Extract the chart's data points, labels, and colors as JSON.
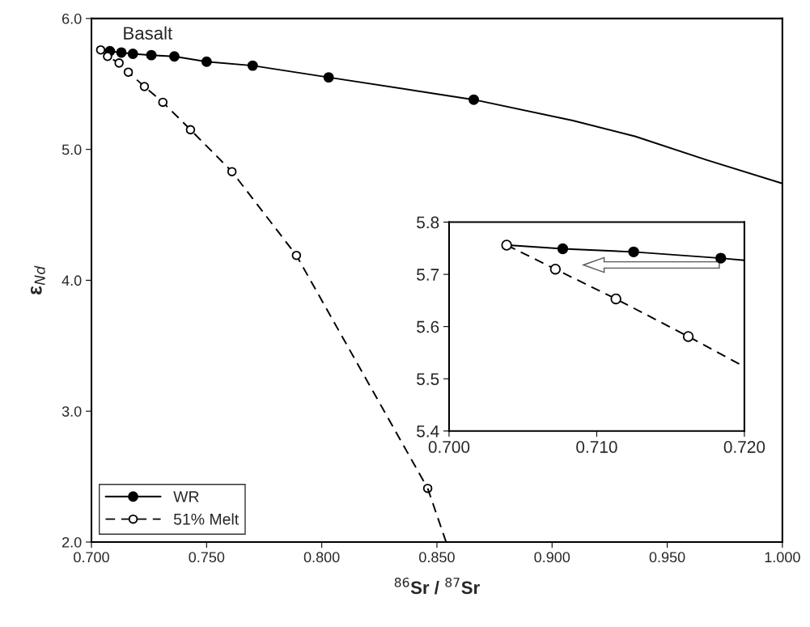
{
  "chart_data": [
    {
      "type": "line",
      "xlabel": "$^{86}$Sr / $^{87}$Sr",
      "ylabel": "ε$_{Nd}$",
      "annotations": [
        "Basalt"
      ],
      "xlim": [
        0.7,
        1.0
      ],
      "ylim": [
        2.0,
        6.0
      ],
      "xticks": [
        {
          "value": 0.7,
          "label": "0.700"
        },
        {
          "value": 0.75,
          "label": "0.750"
        },
        {
          "value": 0.8,
          "label": "0.800"
        },
        {
          "value": 0.85,
          "label": "0.850"
        },
        {
          "value": 0.9,
          "label": "0.900"
        },
        {
          "value": 0.95,
          "label": "0.950"
        },
        {
          "value": 1.0,
          "label": "1.000"
        }
      ],
      "yticks": [
        {
          "value": 2.0,
          "label": "2.0"
        },
        {
          "value": 3.0,
          "label": "3.0"
        },
        {
          "value": 4.0,
          "label": "4.0"
        },
        {
          "value": 5.0,
          "label": "5.0"
        },
        {
          "value": 6.0,
          "label": "6.0"
        }
      ],
      "legend": "bottom left",
      "grid": false,
      "series": [
        {
          "name": "WR",
          "color": "#000000",
          "marker": "circle",
          "line_style": "solid",
          "x": [
            0.708,
            0.713,
            0.718,
            0.726,
            0.736,
            0.75,
            0.77,
            0.803,
            0.866
          ],
          "values": [
            5.75,
            5.74,
            5.73,
            5.72,
            5.71,
            5.67,
            5.64,
            5.55,
            5.38
          ]
        },
        {
          "color": "#000000",
          "marker": "none",
          "line_style": "solid",
          "x": [
            0.866,
            0.909,
            0.936,
            0.967,
            1.0
          ],
          "values": [
            5.38,
            5.22,
            5.1,
            4.92,
            4.74
          ]
        },
        {
          "name": "51% Melt",
          "color": "#000000",
          "marker": "circle",
          "line_style": "dashed",
          "x": [
            0.704,
            0.707,
            0.712,
            0.716,
            0.723,
            0.731,
            0.743,
            0.761,
            0.789,
            0.846
          ],
          "values": [
            5.76,
            5.71,
            5.66,
            5.59,
            5.48,
            5.36,
            5.15,
            4.83,
            4.19,
            2.41
          ]
        },
        {
          "color": "#000000",
          "marker": "none",
          "line_style": "dashed",
          "x": [
            0.846,
            0.854
          ],
          "values": [
            2.41,
            2.0
          ]
        }
      ]
    },
    {
      "type": "line",
      "xlim": [
        0.7,
        0.72
      ],
      "ylim": [
        5.4,
        5.8
      ],
      "xticks": [
        {
          "value": 0.7,
          "label": "0.700"
        },
        {
          "value": 0.71,
          "label": "0.710"
        },
        {
          "value": 0.72,
          "label": "0.720"
        }
      ],
      "yticks": [
        5.4,
        5.5,
        5.6,
        5.7,
        5.8
      ],
      "grid": false,
      "series": [
        {
          "color": "#000000",
          "marker": "none",
          "line_style": "solid",
          "x": [
            0.704,
            0.7077,
            0.7125,
            0.7184,
            0.72
          ],
          "values": [
            5.756,
            5.749,
            5.743,
            5.731,
            5.727
          ]
        },
        {
          "type": "scatter",
          "color": "#000000",
          "marker": "circle",
          "x": [
            0.7077,
            0.7125,
            0.7184
          ],
          "values": [
            5.749,
            5.743,
            5.731
          ]
        },
        {
          "color": "#000000",
          "marker": "none",
          "line_style": "dashed",
          "x": [
            0.7039,
            0.7072,
            0.7113,
            0.7162,
            0.72
          ],
          "values": [
            5.756,
            5.71,
            5.653,
            5.581,
            5.523
          ]
        },
        {
          "type": "scatter",
          "color": "#ffffff",
          "marker": "circle",
          "x": [
            0.7039,
            0.7072,
            0.7113,
            0.7162
          ],
          "values": [
            5.756,
            5.71,
            5.653,
            5.581
          ]
        }
      ]
    }
  ]
}
